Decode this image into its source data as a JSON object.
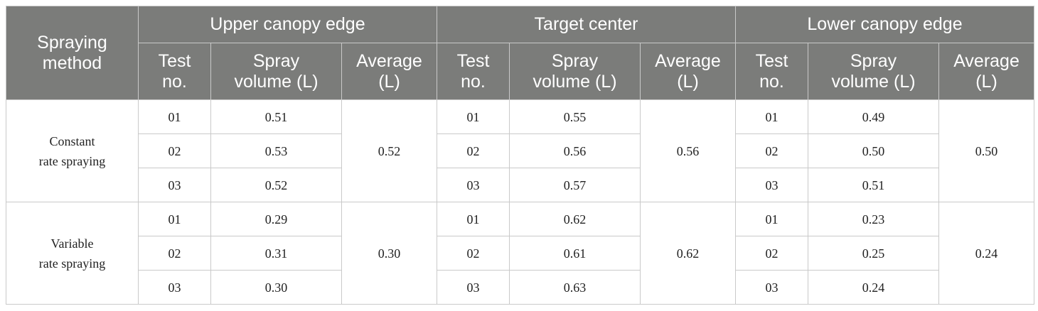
{
  "header": {
    "method_line1": "Spraying",
    "method_line2": "method",
    "groups": [
      "Upper canopy edge",
      "Target center",
      "Lower canopy edge"
    ],
    "sub": {
      "test_line1": "Test",
      "test_line2": "no.",
      "volume_line1": "Spray",
      "volume_line2": "volume (L)",
      "avg_line1": "Average",
      "avg_line2": "(L)"
    }
  },
  "methods": [
    {
      "name_line1": "Constant",
      "name_line2": "rate spraying",
      "rows": [
        {
          "test": "01",
          "upper": "0.51",
          "center": "0.55",
          "lower": "0.49"
        },
        {
          "test": "02",
          "upper": "0.53",
          "center": "0.56",
          "lower": "0.50"
        },
        {
          "test": "03",
          "upper": "0.52",
          "center": "0.57",
          "lower": "0.51"
        }
      ],
      "avg": {
        "upper": "0.52",
        "center": "0.56",
        "lower": "0.50"
      }
    },
    {
      "name_line1": "Variable",
      "name_line2": "rate spraying",
      "rows": [
        {
          "test": "01",
          "upper": "0.29",
          "center": "0.62",
          "lower": "0.23"
        },
        {
          "test": "02",
          "upper": "0.31",
          "center": "0.61",
          "lower": "0.25"
        },
        {
          "test": "03",
          "upper": "0.30",
          "center": "0.63",
          "lower": "0.24"
        }
      ],
      "avg": {
        "upper": "0.30",
        "center": "0.62",
        "lower": "0.24"
      }
    }
  ],
  "colors": {
    "header_bg": "#7b7c7a",
    "header_text": "#ffffff",
    "border": "#c9c9c9"
  }
}
